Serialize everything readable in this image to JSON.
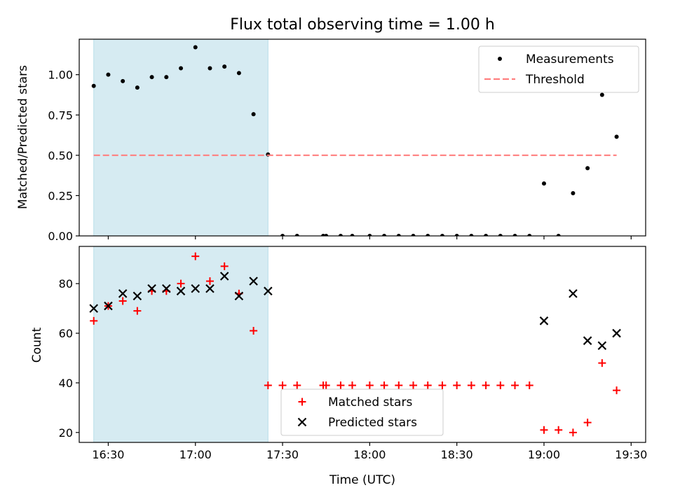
{
  "figure": {
    "title": "Flux total observing time = 1.00 h",
    "xlabel": "Time (UTC)"
  },
  "chart_data": [
    {
      "type": "scatter",
      "panel": "top",
      "ylabel": "Matched/Predicted stars",
      "xlim": [
        "16:20",
        "19:35"
      ],
      "ylim": [
        0,
        1.22
      ],
      "x_ticks": [
        "16:30",
        "17:00",
        "17:30",
        "18:00",
        "18:30",
        "19:00",
        "19:30"
      ],
      "y_ticks": [
        "0.00",
        "0.25",
        "0.50",
        "0.75",
        "1.00"
      ],
      "shaded_span": {
        "from": "16:25",
        "to": "17:25",
        "color": "#add8e6"
      },
      "legend": {
        "placement": "upper right",
        "entries": [
          "Measurements",
          "Threshold"
        ]
      },
      "series": [
        {
          "name": "Measurements",
          "marker": "dot",
          "color": "#000000",
          "points": [
            [
              "16:25",
              0.93
            ],
            [
              "16:30",
              1.0
            ],
            [
              "16:35",
              0.96
            ],
            [
              "16:40",
              0.92
            ],
            [
              "16:45",
              0.985
            ],
            [
              "16:50",
              0.985
            ],
            [
              "16:55",
              1.04
            ],
            [
              "17:00",
              1.17
            ],
            [
              "17:05",
              1.04
            ],
            [
              "17:10",
              1.05
            ],
            [
              "17:15",
              1.01
            ],
            [
              "17:20",
              0.755
            ],
            [
              "17:25",
              0.505
            ],
            [
              "17:30",
              0
            ],
            [
              "17:35",
              0
            ],
            [
              "17:44",
              0
            ],
            [
              "17:45",
              0
            ],
            [
              "17:50",
              0
            ],
            [
              "17:54",
              0
            ],
            [
              "18:00",
              0
            ],
            [
              "18:05",
              0
            ],
            [
              "18:10",
              0
            ],
            [
              "18:15",
              0
            ],
            [
              "18:20",
              0
            ],
            [
              "18:25",
              0
            ],
            [
              "18:30",
              0
            ],
            [
              "18:35",
              0
            ],
            [
              "18:40",
              0
            ],
            [
              "18:45",
              0
            ],
            [
              "18:50",
              0
            ],
            [
              "18:55",
              0
            ],
            [
              "19:00",
              0.325
            ],
            [
              "19:05",
              0
            ],
            [
              "19:10",
              0.265
            ],
            [
              "19:15",
              0.42
            ],
            [
              "19:20",
              0.875
            ],
            [
              "19:25",
              0.615
            ]
          ]
        },
        {
          "name": "Threshold",
          "style": "dashed",
          "color": "#ff7f7f",
          "points": [
            [
              "16:25",
              0.5
            ],
            [
              "19:25",
              0.5
            ]
          ]
        }
      ]
    },
    {
      "type": "scatter",
      "panel": "bottom",
      "ylabel": "Count",
      "xlim": [
        "16:20",
        "19:35"
      ],
      "ylim": [
        16,
        95
      ],
      "x_ticks": [
        "16:30",
        "17:00",
        "17:30",
        "18:00",
        "18:30",
        "19:00",
        "19:30"
      ],
      "y_ticks": [
        "20",
        "40",
        "60",
        "80"
      ],
      "shaded_span": {
        "from": "16:25",
        "to": "17:25",
        "color": "#add8e6"
      },
      "legend": {
        "placement": "lower center",
        "entries": [
          "Matched stars",
          "Predicted stars"
        ]
      },
      "series": [
        {
          "name": "Matched stars",
          "marker": "plus",
          "color": "#ff0000",
          "points": [
            [
              "16:25",
              65
            ],
            [
              "16:30",
              71
            ],
            [
              "16:35",
              73
            ],
            [
              "16:40",
              69
            ],
            [
              "16:45",
              77
            ],
            [
              "16:50",
              77
            ],
            [
              "16:55",
              80
            ],
            [
              "17:00",
              91
            ],
            [
              "17:05",
              81
            ],
            [
              "17:10",
              87
            ],
            [
              "17:15",
              76
            ],
            [
              "17:20",
              61
            ],
            [
              "17:25",
              39
            ],
            [
              "17:30",
              39
            ],
            [
              "17:35",
              39
            ],
            [
              "17:44",
              39
            ],
            [
              "17:45",
              39
            ],
            [
              "17:50",
              39
            ],
            [
              "17:54",
              39
            ],
            [
              "18:00",
              39
            ],
            [
              "18:05",
              39
            ],
            [
              "18:10",
              39
            ],
            [
              "18:15",
              39
            ],
            [
              "18:20",
              39
            ],
            [
              "18:25",
              39
            ],
            [
              "18:30",
              39
            ],
            [
              "18:35",
              39
            ],
            [
              "18:40",
              39
            ],
            [
              "18:45",
              39
            ],
            [
              "18:50",
              39
            ],
            [
              "18:55",
              39
            ],
            [
              "19:00",
              21
            ],
            [
              "19:05",
              21
            ],
            [
              "19:10",
              20
            ],
            [
              "19:15",
              24
            ],
            [
              "19:20",
              48
            ],
            [
              "19:25",
              37
            ]
          ]
        },
        {
          "name": "Predicted stars",
          "marker": "x",
          "color": "#000000",
          "points": [
            [
              "16:25",
              70
            ],
            [
              "16:30",
              71
            ],
            [
              "16:35",
              76
            ],
            [
              "16:40",
              75
            ],
            [
              "16:45",
              78
            ],
            [
              "16:50",
              78
            ],
            [
              "16:55",
              77
            ],
            [
              "17:00",
              78
            ],
            [
              "17:05",
              78
            ],
            [
              "17:10",
              83
            ],
            [
              "17:15",
              75
            ],
            [
              "17:20",
              81
            ],
            [
              "17:25",
              77
            ],
            [
              "19:00",
              65
            ],
            [
              "19:10",
              76
            ],
            [
              "19:15",
              57
            ],
            [
              "19:20",
              55
            ],
            [
              "19:25",
              60
            ]
          ]
        }
      ]
    }
  ]
}
